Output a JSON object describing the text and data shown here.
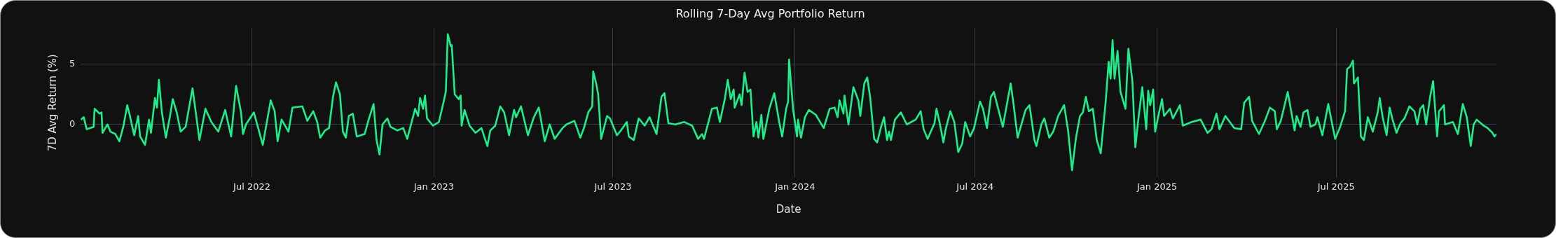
{
  "chart_data": {
    "type": "line",
    "title": "Rolling 7-Day Avg Portfolio Return",
    "xlabel": "Date",
    "ylabel": "7D Avg Return (%)",
    "x": [
      "2022-01-09",
      "2022-01-12",
      "2022-01-15",
      "2022-01-22",
      "2022-01-23",
      "2022-01-28",
      "2022-01-30",
      "2022-01-31",
      "2022-02-05",
      "2022-02-08",
      "2022-02-13",
      "2022-02-17",
      "2022-02-21",
      "2022-02-25",
      "2022-02-28",
      "2022-03-04",
      "2022-03-08",
      "2022-03-10",
      "2022-03-15",
      "2022-03-19",
      "2022-03-21",
      "2022-03-25",
      "2022-03-27",
      "2022-03-29",
      "2022-04-01",
      "2022-04-05",
      "2022-04-09",
      "2022-04-12",
      "2022-04-16",
      "2022-04-20",
      "2022-04-25",
      "2022-05-02",
      "2022-05-09",
      "2022-05-15",
      "2022-05-21",
      "2022-05-28",
      "2022-06-04",
      "2022-06-10",
      "2022-06-15",
      "2022-06-20",
      "2022-06-22",
      "2022-06-25",
      "2022-07-03",
      "2022-07-12",
      "2022-07-20",
      "2022-07-24",
      "2022-07-27",
      "2022-07-31",
      "2022-08-07",
      "2022-08-11",
      "2022-08-21",
      "2022-08-26",
      "2022-09-01",
      "2022-09-05",
      "2022-09-08",
      "2022-09-13",
      "2022-09-17",
      "2022-09-21",
      "2022-09-24",
      "2022-09-28",
      "2022-10-01",
      "2022-10-04",
      "2022-10-07",
      "2022-10-11",
      "2022-10-15",
      "2022-10-23",
      "2022-10-27",
      "2022-11-01",
      "2022-11-04",
      "2022-11-07",
      "2022-11-10",
      "2022-11-15",
      "2022-11-18",
      "2022-11-25",
      "2022-12-01",
      "2022-12-05",
      "2022-12-13",
      "2022-12-16",
      "2022-12-18",
      "2022-12-21",
      "2022-12-23",
      "2022-12-25",
      "2022-12-31",
      "2023-01-06",
      "2023-01-10",
      "2023-01-13",
      "2023-01-15",
      "2023-01-18",
      "2023-01-19",
      "2023-01-22",
      "2023-01-26",
      "2023-01-28",
      "2023-01-29",
      "2023-02-01",
      "2023-02-06",
      "2023-02-12",
      "2023-02-18",
      "2023-02-24",
      "2023-02-27",
      "2023-03-04",
      "2023-03-09",
      "2023-03-13",
      "2023-03-18",
      "2023-03-23",
      "2023-03-25",
      "2023-03-30",
      "2023-04-06",
      "2023-04-12",
      "2023-04-17",
      "2023-04-23",
      "2023-04-28",
      "2023-05-03",
      "2023-05-11",
      "2023-05-15",
      "2023-05-23",
      "2023-05-29",
      "2023-06-02",
      "2023-06-06",
      "2023-06-10",
      "2023-06-11",
      "2023-06-14",
      "2023-06-16",
      "2023-06-19",
      "2023-06-25",
      "2023-06-28",
      "2023-07-02",
      "2023-07-05",
      "2023-07-09",
      "2023-07-15",
      "2023-07-17",
      "2023-07-22",
      "2023-07-27",
      "2023-08-02",
      "2023-08-07",
      "2023-08-14",
      "2023-08-19",
      "2023-08-22",
      "2023-08-26",
      "2023-09-02",
      "2023-09-11",
      "2023-09-19",
      "2023-09-25",
      "2023-09-29",
      "2023-10-01",
      "2023-10-09",
      "2023-10-14",
      "2023-10-17",
      "2023-10-22",
      "2023-10-25",
      "2023-10-28",
      "2023-10-31",
      "2023-11-01",
      "2023-11-06",
      "2023-11-08",
      "2023-11-11",
      "2023-11-14",
      "2023-11-17",
      "2023-11-20",
      "2023-11-23",
      "2023-11-25",
      "2023-11-28",
      "2023-11-30",
      "2023-12-06",
      "2023-12-11",
      "2023-12-16",
      "2023-12-19",
      "2023-12-23",
      "2023-12-25",
      "2023-12-26",
      "2023-12-30",
      "2024-01-03",
      "2024-01-04",
      "2024-01-07",
      "2024-01-11",
      "2024-01-15",
      "2024-01-22",
      "2024-01-30",
      "2024-02-05",
      "2024-02-10",
      "2024-02-13",
      "2024-02-15",
      "2024-02-19",
      "2024-02-20",
      "2024-02-24",
      "2024-02-29",
      "2024-03-05",
      "2024-03-07",
      "2024-03-11",
      "2024-03-14",
      "2024-03-17",
      "2024-03-21",
      "2024-03-24",
      "2024-03-28",
      "2024-03-31",
      "2024-04-03",
      "2024-04-05",
      "2024-04-07",
      "2024-04-11",
      "2024-04-17",
      "2024-04-23",
      "2024-05-02",
      "2024-05-07",
      "2024-05-10",
      "2024-05-14",
      "2024-05-21",
      "2024-05-23",
      "2024-05-26",
      "2024-05-30",
      "2024-06-01",
      "2024-06-06",
      "2024-06-10",
      "2024-06-14",
      "2024-06-18",
      "2024-06-21",
      "2024-06-26",
      "2024-06-30",
      "2024-07-06",
      "2024-07-09",
      "2024-07-13",
      "2024-07-17",
      "2024-07-20",
      "2024-07-25",
      "2024-07-29",
      "2024-08-06",
      "2024-08-09",
      "2024-08-13",
      "2024-08-21",
      "2024-08-25",
      "2024-08-30",
      "2024-09-01",
      "2024-09-06",
      "2024-09-09",
      "2024-09-14",
      "2024-09-18",
      "2024-09-23",
      "2024-09-29",
      "2024-10-03",
      "2024-10-07",
      "2024-10-11",
      "2024-10-15",
      "2024-10-18",
      "2024-10-21",
      "2024-10-24",
      "2024-10-28",
      "2024-11-01",
      "2024-11-05",
      "2024-11-10",
      "2024-11-13",
      "2024-11-15",
      "2024-11-17",
      "2024-11-19",
      "2024-11-22",
      "2024-11-25",
      "2024-11-30",
      "2024-12-03",
      "2024-12-07",
      "2024-12-10",
      "2024-12-13",
      "2024-12-17",
      "2024-12-21",
      "2024-12-23",
      "2024-12-25",
      "2024-12-28",
      "2024-12-30",
      "2025-01-03",
      "2025-01-06",
      "2025-01-08",
      "2025-01-14",
      "2025-01-17",
      "2025-01-24",
      "2025-01-27",
      "2025-02-05",
      "2025-02-14",
      "2025-02-21",
      "2025-02-25",
      "2025-03-02",
      "2025-03-05",
      "2025-03-11",
      "2025-03-20",
      "2025-03-27",
      "2025-03-30",
      "2025-04-04",
      "2025-04-07",
      "2025-04-14",
      "2025-04-20",
      "2025-04-25",
      "2025-04-30",
      "2025-05-02",
      "2025-05-06",
      "2025-05-09",
      "2025-05-13",
      "2025-05-20",
      "2025-05-22",
      "2025-05-26",
      "2025-05-29",
      "2025-06-02",
      "2025-06-05",
      "2025-06-10",
      "2025-06-12",
      "2025-06-17",
      "2025-06-23",
      "2025-06-27",
      "2025-06-30",
      "2025-07-05",
      "2025-07-10",
      "2025-07-12",
      "2025-07-15",
      "2025-07-18",
      "2025-07-19",
      "2025-07-23",
      "2025-07-26",
      "2025-07-29",
      "2025-08-02",
      "2025-08-07",
      "2025-08-12",
      "2025-08-14",
      "2025-08-17",
      "2025-08-21",
      "2025-08-24",
      "2025-08-27",
      "2025-08-31",
      "2025-09-04",
      "2025-09-08",
      "2025-09-13",
      "2025-09-18",
      "2025-09-21",
      "2025-09-24",
      "2025-09-27",
      "2025-09-30",
      "2025-10-04",
      "2025-10-07",
      "2025-10-11",
      "2025-10-13",
      "2025-10-18",
      "2025-10-19",
      "2025-10-27",
      "2025-11-01",
      "2025-11-06",
      "2025-11-10",
      "2025-11-14",
      "2025-11-17",
      "2025-11-20",
      "2025-11-27",
      "2025-12-01",
      "2025-12-06",
      "2025-12-08",
      "2025-12-10"
    ],
    "series": [
      {
        "color": "#19f08c",
        "values": [
          0.4,
          0.6,
          -0.4,
          -0.2,
          1.3,
          0.9,
          1.0,
          -0.7,
          0,
          -0.6,
          -0.8,
          -1.4,
          -0.2,
          1.6,
          0.6,
          -0.9,
          0.7,
          -1.0,
          -1.7,
          0.4,
          -0.7,
          2.2,
          1.4,
          3.7,
          1.0,
          -1.1,
          0.6,
          2.1,
          1.0,
          -0.6,
          -0.2,
          3.0,
          -1.3,
          1.3,
          0.2,
          -0.6,
          1.2,
          -1.0,
          3.2,
          1.0,
          -0.8,
          0,
          1.0,
          -1.7,
          2.0,
          1.1,
          -1.4,
          0.4,
          -0.6,
          1.4,
          1.5,
          0.3,
          1.1,
          0.2,
          -1.1,
          -0.5,
          -0.3,
          2.3,
          3.5,
          2.5,
          -0.6,
          -1.1,
          0.7,
          0.9,
          -1.0,
          -0.8,
          0.4,
          1.7,
          -1.3,
          -2.5,
          0,
          0.5,
          -0.2,
          -0.5,
          -0.3,
          -1.2,
          1.3,
          0.7,
          2.2,
          1.3,
          2.4,
          0.5,
          -0.1,
          0.2,
          1.6,
          2.7,
          7.5,
          6.5,
          6.6,
          2.5,
          2.1,
          2.4,
          -0.1,
          1.2,
          -0.1,
          -0.7,
          -0.3,
          -1.8,
          -0.5,
          -0.1,
          1.5,
          1.0,
          -0.9,
          1.2,
          0.6,
          1.5,
          -0.9,
          0.6,
          1.4,
          -1.4,
          0,
          -1.2,
          -0.3,
          0,
          0.3,
          -1.1,
          -0.2,
          1.0,
          1.5,
          4.4,
          3.4,
          2.5,
          -1.2,
          0.7,
          0.5,
          -0.3,
          -0.9,
          -0.5,
          0.2,
          -1.0,
          -1.3,
          0.5,
          -0.1,
          0.6,
          -0.8,
          2.3,
          2.6,
          0.1,
          0,
          0.2,
          -0.1,
          -1.2,
          -0.8,
          -1.2,
          1.3,
          1.4,
          0.2,
          2.1,
          3.7,
          2.1,
          2.9,
          1.4,
          2.5,
          1.6,
          4.3,
          2.7,
          2.9,
          -1.0,
          0.2,
          -1.1,
          0.8,
          -1.2,
          1.3,
          2.6,
          0.2,
          -1.0,
          1.3,
          1.9,
          5.4,
          1.3,
          -1.0,
          0.4,
          -1.1,
          0.6,
          1.2,
          0.8,
          -0.3,
          1.3,
          1.4,
          0.6,
          2.0,
          0.9,
          2.4,
          0,
          3.1,
          2.0,
          0.7,
          3.4,
          3.9,
          2.2,
          -1.2,
          -1.5,
          -0.2,
          0.6,
          -1.3,
          -0.6,
          -1.3,
          0.4,
          1.0,
          0,
          0.4,
          1.1,
          -0.4,
          -1.2,
          0.1,
          1.3,
          0.2,
          -1.5,
          -0.5,
          1.1,
          0.2,
          -2.3,
          -1.6,
          0.2,
          -1.0,
          -0.3,
          1.9,
          1.3,
          -0.3,
          2.3,
          2.7,
          1.1,
          -0.2,
          3.4,
          1.6,
          -1.1,
          1.2,
          1.6,
          -1.3,
          -1.8,
          0,
          0.5,
          -1.1,
          -0.6,
          0.7,
          1.6,
          -0.5,
          -3.8,
          -1.1,
          0.7,
          1.0,
          2.3,
          1.1,
          1.3,
          -1.3,
          -2.4,
          1.9,
          5.2,
          3.8,
          7.0,
          3.8,
          6.1,
          2.7,
          1.3,
          6.3,
          3.6,
          -1.9,
          0.4,
          3.1,
          -0.4,
          2.8,
          1.6,
          2.9,
          -0.6,
          1.0,
          2.1,
          0.7,
          1.3,
          0.5,
          1.6,
          -0.1,
          0.2,
          0.4,
          -0.7,
          -0.4,
          0.9,
          -0.4,
          0.7,
          -0.3,
          -0.4,
          1.8,
          2.3,
          0.3,
          -0.8,
          0.3,
          1.4,
          1.1,
          -0.4,
          0.3,
          1.3,
          2.7,
          -0.5,
          0.7,
          -0.2,
          1.0,
          1.2,
          -0.2,
          0,
          0.6,
          -0.9,
          1.7,
          0,
          -1.2,
          -0.2,
          1.1,
          4.6,
          4.8,
          5.3,
          3.4,
          3.9,
          -1.0,
          -1.3,
          0.6,
          -0.6,
          1.0,
          2.2,
          0.6,
          -0.9,
          1.4,
          0.4,
          -0.7,
          0.1,
          0.5,
          1.5,
          1.1,
          0,
          1.3,
          1.6,
          0,
          2.3,
          3.6,
          -1.0,
          1.1,
          1.6,
          0,
          0.2,
          -0.8,
          1.7,
          0.6,
          -1.8,
          0,
          0.4,
          -0.1,
          -0.3,
          -0.7,
          -1.0,
          -0.8
        ]
      }
    ],
    "xlim": [
      "2022-01-09",
      "2025-12-10"
    ],
    "ylim": [
      -4.4,
      8.0
    ],
    "xticks": [
      {
        "value": "2022-07-01",
        "label": "Jul 2022"
      },
      {
        "value": "2023-01-01",
        "label": "Jan 2023"
      },
      {
        "value": "2023-07-01",
        "label": "Jul 2023"
      },
      {
        "value": "2024-01-01",
        "label": "Jan 2024"
      },
      {
        "value": "2024-07-01",
        "label": "Jul 2024"
      },
      {
        "value": "2025-01-01",
        "label": "Jan 2025"
      },
      {
        "value": "2025-07-01",
        "label": "Jul 2025"
      }
    ],
    "yticks": [
      0,
      5
    ],
    "grid": true
  }
}
